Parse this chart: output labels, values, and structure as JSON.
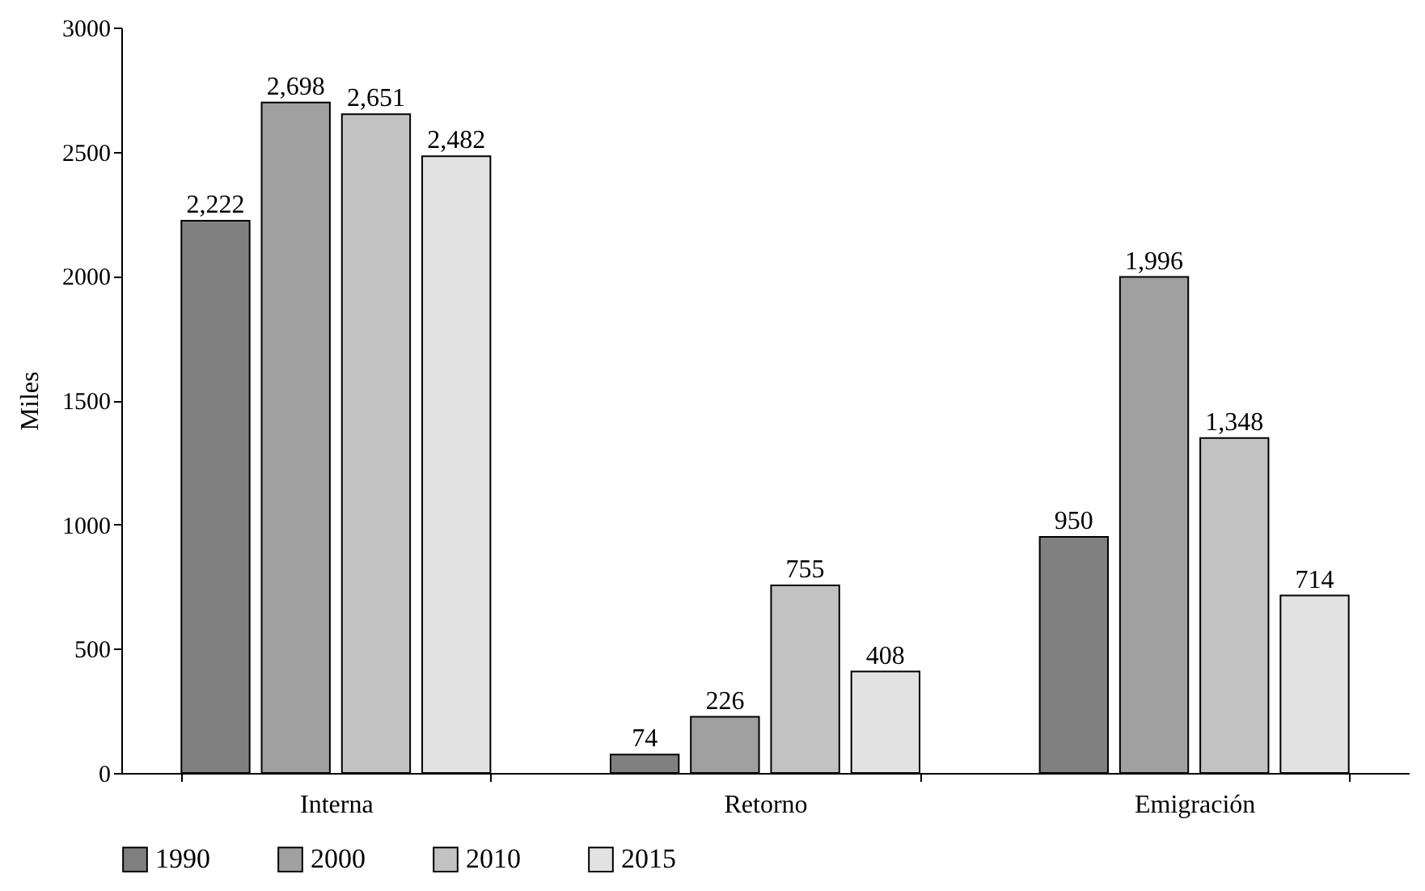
{
  "chart_data": {
    "type": "bar",
    "ylabel": "Miles",
    "categories": [
      "Interna",
      "Retorno",
      "Emigración"
    ],
    "series": [
      {
        "name": "1990",
        "color": "#808080",
        "values": [
          2222,
          74,
          950
        ],
        "value_labels": [
          "2,222",
          "74",
          "950"
        ]
      },
      {
        "name": "2000",
        "color": "#a0a0a0",
        "values": [
          2698,
          226,
          1996
        ],
        "value_labels": [
          "2,698",
          "226",
          "1,996"
        ]
      },
      {
        "name": "2010",
        "color": "#c2c2c2",
        "values": [
          2651,
          755,
          1348
        ],
        "value_labels": [
          "2,651",
          "755",
          "1,348"
        ]
      },
      {
        "name": "2015",
        "color": "#e2e2e2",
        "values": [
          2482,
          408,
          714
        ],
        "value_labels": [
          "2,482",
          "408",
          "714"
        ]
      }
    ],
    "ylim": [
      0,
      3000
    ],
    "yticks": [
      0,
      500,
      1000,
      1500,
      2000,
      2500,
      3000
    ],
    "grid": false,
    "legend": "bottom"
  }
}
